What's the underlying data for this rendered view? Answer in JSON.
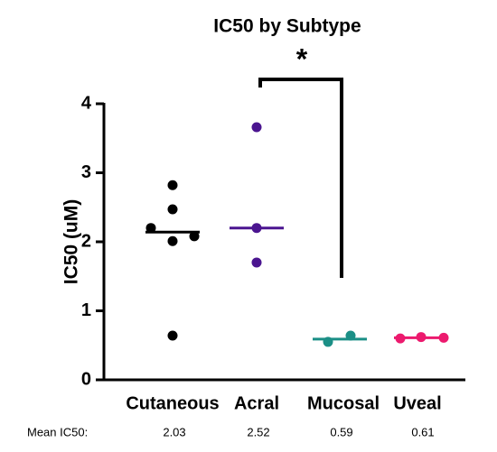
{
  "chart_data": {
    "type": "strip",
    "title": "IC50 by Subtype",
    "y_label": "IC50 (uM)",
    "ylim": [
      0,
      4
    ],
    "yticks": [
      0,
      1,
      2,
      3,
      4
    ],
    "series": [
      {
        "name": "Cutaneous",
        "color": "#000000",
        "values": [
          2.82,
          2.47,
          2.2,
          2.01,
          2.08,
          0.64
        ],
        "median": 2.14
      },
      {
        "name": "Acral",
        "color": "#4b1590",
        "values": [
          3.66,
          2.2,
          1.7
        ],
        "median": 2.2
      },
      {
        "name": "Mucosal",
        "color": "#1b8f86",
        "values": [
          0.55,
          0.64
        ],
        "median": 0.59
      },
      {
        "name": "Uveal",
        "color": "#ec1a6e",
        "values": [
          0.6,
          0.62,
          0.61
        ],
        "median": 0.61
      }
    ],
    "annotations": [
      {
        "text": "*"
      }
    ],
    "mean_label": "Mean IC50:",
    "means": [
      2.03,
      2.52,
      0.59,
      0.61
    ]
  }
}
